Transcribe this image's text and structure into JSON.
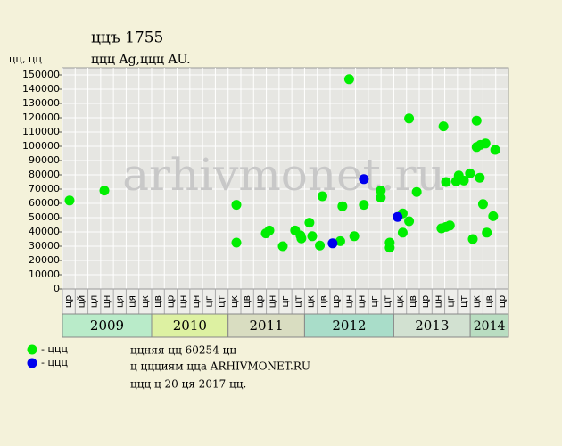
{
  "chart_data": {
    "type": "scatter",
    "title": "ццъ 1755",
    "subtitle": "ццц Ag,ццц AU.",
    "y_label": "цц, цц",
    "watermark": "arhivmonet.ru",
    "ylim": [
      0,
      155000
    ],
    "yticks": [
      0,
      10000,
      20000,
      30000,
      40000,
      50000,
      60000,
      70000,
      80000,
      90000,
      100000,
      110000,
      120000,
      130000,
      140000,
      150000
    ],
    "xlim": [
      0,
      35
    ],
    "categories": [
      "цр",
      "цй",
      "цл",
      "цн",
      "ця",
      "ця",
      "цк",
      "цв",
      "цр",
      "цн",
      "цн",
      "цг",
      "цт",
      "цк",
      "цв",
      "цр",
      "цн",
      "цг",
      "цт",
      "цк",
      "цв",
      "цр",
      "цн",
      "цн",
      "цг",
      "цт",
      "цк",
      "цв",
      "цр",
      "цн",
      "цг",
      "цт",
      "цк",
      "цв",
      "цр"
    ],
    "years": [
      {
        "label": "2009",
        "columns": 7,
        "color": "#b9ebc9"
      },
      {
        "label": "2010",
        "columns": 6,
        "color": "#ddf1a2"
      },
      {
        "label": "2011",
        "columns": 6,
        "color": "#d9ddc1"
      },
      {
        "label": "2012",
        "columns": 7,
        "color": "#a9ddc9"
      },
      {
        "label": "2013",
        "columns": 6,
        "color": "#d2e1d1"
      },
      {
        "label": "2014",
        "columns": 3,
        "color": "#b9ddc1"
      }
    ],
    "grid": true,
    "series": [
      {
        "name": "- ццц",
        "color": "#00ee00",
        "x": [
          0.56,
          3.29,
          13.65,
          13.65,
          15.96,
          16.24,
          17.29,
          18.26,
          18.68,
          18.75,
          19.38,
          19.6,
          20.2,
          20.4,
          21.8,
          21.97,
          22.5,
          22.9,
          23.65,
          24.98,
          24.98,
          25.68,
          25.68,
          26.7,
          26.7,
          27.2,
          27.2,
          27.8,
          29.9,
          29.74,
          30.1,
          30.1,
          30.4,
          30.9,
          31.1,
          31.5,
          31.98,
          32.2,
          32.5,
          32.5,
          32.75,
          32.8,
          33.2,
          33.0,
          33.3,
          33.8,
          33.96
        ],
        "values": [
          62000,
          69000,
          59000,
          32500,
          39000,
          41000,
          30000,
          41000,
          37500,
          35500,
          46500,
          37000,
          30500,
          65000,
          33500,
          58000,
          147000,
          37000,
          59000,
          69000,
          64000,
          32500,
          29000,
          53000,
          39500,
          119500,
          47500,
          68000,
          114000,
          42500,
          75000,
          43500,
          44500,
          75500,
          79500,
          76000,
          81000,
          35000,
          118000,
          99500,
          78000,
          101000,
          102000,
          59500,
          39500,
          51000,
          97500
        ]
      },
      {
        "name": "- ццц",
        "color": "#0000ee",
        "x": [
          21.2,
          23.65,
          26.3
        ],
        "values": [
          32000,
          77000,
          50500
        ]
      }
    ],
    "footer": [
      "ццняя цц 60254 цц",
      "ц ццциям цца ARHIVMONET.RU",
      "ццц ц 20 ця 2017 цц."
    ]
  }
}
